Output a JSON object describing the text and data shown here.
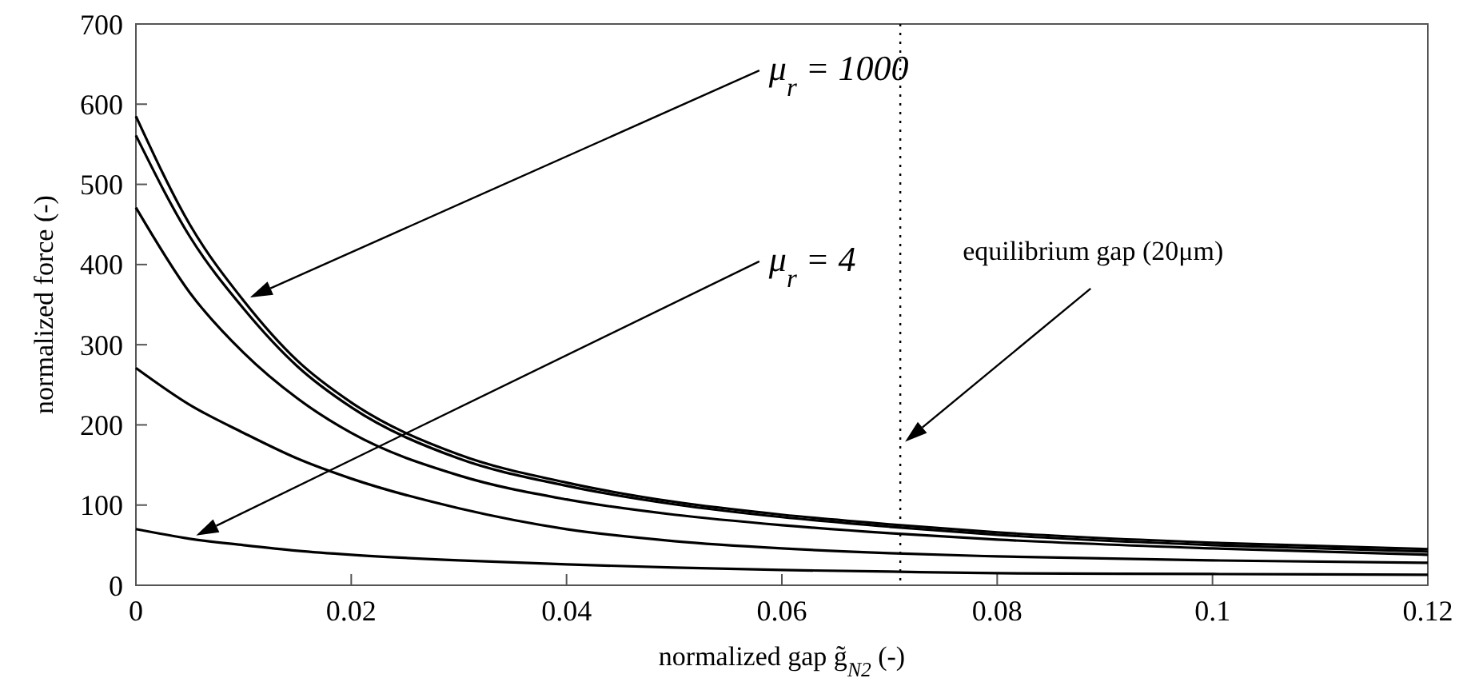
{
  "chart_data": {
    "type": "line",
    "xlabel": "normalized gap g̃$_{N2}$ (-)",
    "ylabel": "normalized force (-)",
    "x": [
      0,
      0.005,
      0.01,
      0.015,
      0.02,
      0.03,
      0.04,
      0.05,
      0.06,
      0.07,
      0.08,
      0.1,
      0.12
    ],
    "series": [
      {
        "color": "#000000",
        "values": [
          585,
          450,
          355,
          280,
          228,
          163,
          128,
          104,
          88,
          76,
          66,
          53,
          45
        ]
      },
      {
        "color": "#000000",
        "values": [
          561,
          435,
          345,
          273,
          222,
          158,
          124,
          101,
          85,
          73,
          63,
          50,
          42
        ]
      },
      {
        "color": "#000000",
        "values": [
          471,
          365,
          290,
          233,
          190,
          137,
          107,
          88,
          75,
          65,
          57,
          46,
          38
        ]
      },
      {
        "color": "#000000",
        "values": [
          271,
          225,
          190,
          158,
          133,
          96,
          70,
          55,
          46,
          40,
          36,
          31,
          28
        ]
      },
      {
        "color": "#000000",
        "values": [
          70,
          58,
          50,
          43,
          38,
          31,
          26,
          22,
          19,
          17,
          15,
          14,
          13
        ]
      }
    ],
    "xlim": [
      0,
      0.12
    ],
    "xticks": [
      0,
      0.02,
      0.04,
      0.06,
      0.08,
      0.1,
      0.12
    ],
    "ylim": [
      0,
      700
    ],
    "yticks": [
      0,
      100,
      200,
      300,
      400,
      500,
      600,
      700
    ],
    "grid": false,
    "marker": "none",
    "line_style": "solid",
    "annotations": [
      "μ$_{r}$ = 1000",
      "μ$_{r}$ = 4"
    ],
    "ref_lines": [
      {
        "axis": "x",
        "value": 0.071,
        "label": "equilibrium gap (20μm)",
        "line_style": "dotted",
        "color": "#000000"
      }
    ]
  }
}
